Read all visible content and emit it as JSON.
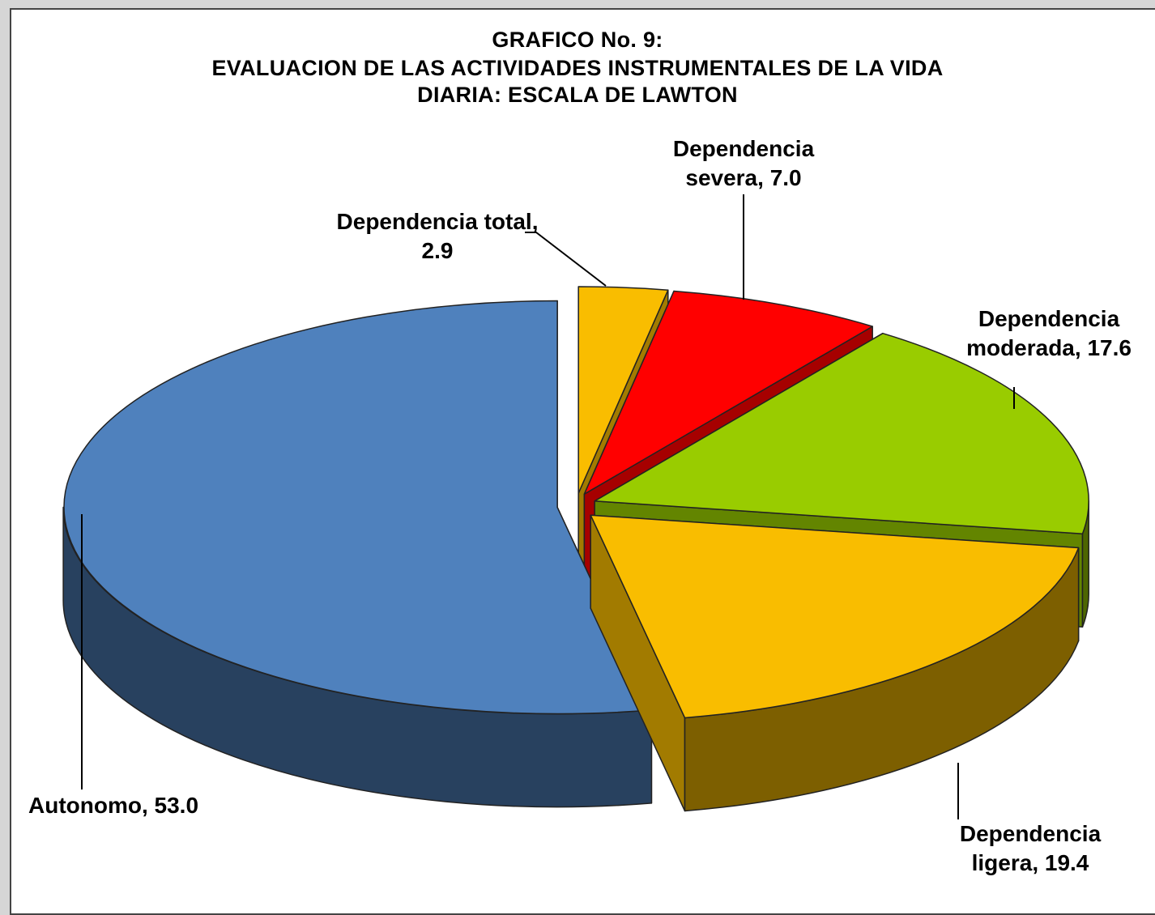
{
  "chart_data": {
    "type": "pie3d",
    "title": [
      "GRAFICO No. 9:",
      "EVALUACION DE LAS ACTIVIDADES INSTRUMENTALES DE LA VIDA",
      "DIARIA: ESCALA DE LAWTON"
    ],
    "labels": [
      "Dependencia total, 2.9",
      "Dependencia severa, 7.0",
      "Dependencia moderada, 17.6",
      "Dependencia ligera, 19.4",
      "Autonomo, 53.0"
    ],
    "values": [
      2.9,
      7.0,
      17.6,
      19.4,
      53.0
    ],
    "colors": [
      "#f9bd00",
      "#ff0000",
      "#99cc00",
      "#f9bd00",
      "#4f81bd"
    ]
  }
}
